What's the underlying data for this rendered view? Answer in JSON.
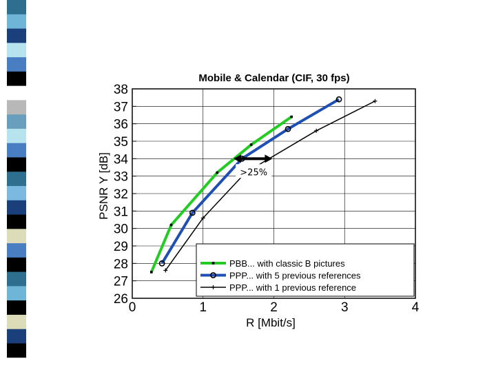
{
  "strip": {
    "colors": [
      "#2e6e8e",
      "#6fb5d8",
      "#1a3f7a",
      "#b7e3ef",
      "#4a7ec3",
      "#000000",
      "#ffffff",
      "#b8b8b8",
      "#6a9ebd",
      "#b7e3ef",
      "#4a7ec3",
      "#000000",
      "#2e6e8e",
      "#7cb9e0",
      "#1a3f7a",
      "#000000",
      "#dcdcb8",
      "#4a7ec3",
      "#000000",
      "#2e6e8e",
      "#6fb5d8",
      "#000000",
      "#dcdcb8",
      "#1a3f7a",
      "#000000",
      "#ffffff"
    ]
  },
  "chart_data": {
    "type": "line",
    "title": "Mobile & Calendar (CIF, 30 fps)",
    "xlabel": "R [Mbit/s]",
    "ylabel": "PSNR Y [dB]",
    "xlim": [
      0,
      4
    ],
    "ylim": [
      26,
      38
    ],
    "xticks": [
      "0",
      "1",
      "2",
      "3",
      "4"
    ],
    "yticks": [
      "26",
      "27",
      "28",
      "29",
      "30",
      "31",
      "32",
      "33",
      "34",
      "35",
      "36",
      "37",
      "38"
    ],
    "grid": true,
    "legend_position": "bottom-right",
    "series": [
      {
        "name": "PBB... with classic B pictures",
        "color": "#22cc22",
        "marker": "dot",
        "x": [
          0.27,
          0.55,
          1.2,
          1.68,
          2.25
        ],
        "y": [
          27.5,
          30.2,
          33.2,
          34.8,
          36.4
        ]
      },
      {
        "name": "PPP... with 5 previous references",
        "color": "#1e4fb4",
        "marker": "circle",
        "x": [
          0.42,
          0.85,
          1.55,
          2.2,
          2.92
        ],
        "y": [
          28.0,
          30.9,
          34.0,
          35.7,
          37.4
        ]
      },
      {
        "name": "PPP... with 1 previous reference",
        "color": "#000000",
        "marker": "plus",
        "x": [
          0.47,
          1.0,
          1.6,
          2.6,
          3.43
        ],
        "y": [
          27.6,
          30.6,
          33.2,
          35.6,
          37.3
        ]
      }
    ],
    "annotations": [
      {
        "text": ">25%",
        "x_from": 1.43,
        "x_to": 1.98,
        "y": 34.0
      }
    ]
  }
}
